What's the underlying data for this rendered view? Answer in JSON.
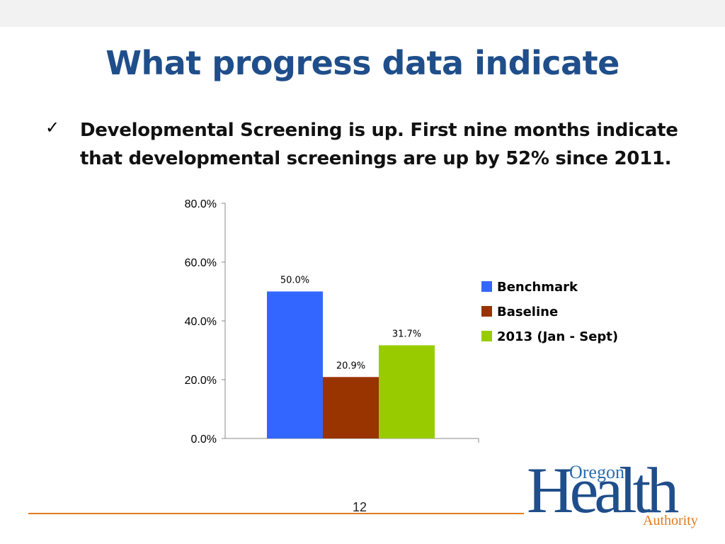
{
  "slide": {
    "title": "What progress data indicate",
    "bullet_icon": "checkmark",
    "bullet_text": "Developmental Screening is up.  First nine months indicate that developmental screenings are up by 52% since 2011.",
    "page_number": "12",
    "accent_color": "#e07b1f",
    "title_color": "#1f4e8a"
  },
  "logo": {
    "top": "Oregon",
    "main": "Health",
    "bottom": "Authority"
  },
  "chart_data": {
    "type": "bar",
    "title": "",
    "xlabel": "",
    "ylabel": "",
    "ylim": [
      0,
      80
    ],
    "yticks": [
      "0.0%",
      "20.0%",
      "40.0%",
      "60.0%",
      "80.0%"
    ],
    "series": [
      {
        "name": "Benchmark",
        "values": [
          50.0
        ],
        "label": "50.0%",
        "color": "#3366ff"
      },
      {
        "name": "Baseline",
        "values": [
          20.9
        ],
        "label": "20.9%",
        "color": "#993300"
      },
      {
        "name": "2013 (Jan - Sept)",
        "values": [
          31.7
        ],
        "label": "31.7%",
        "color": "#99cc00"
      }
    ],
    "legend_position": "right",
    "grid": false
  }
}
